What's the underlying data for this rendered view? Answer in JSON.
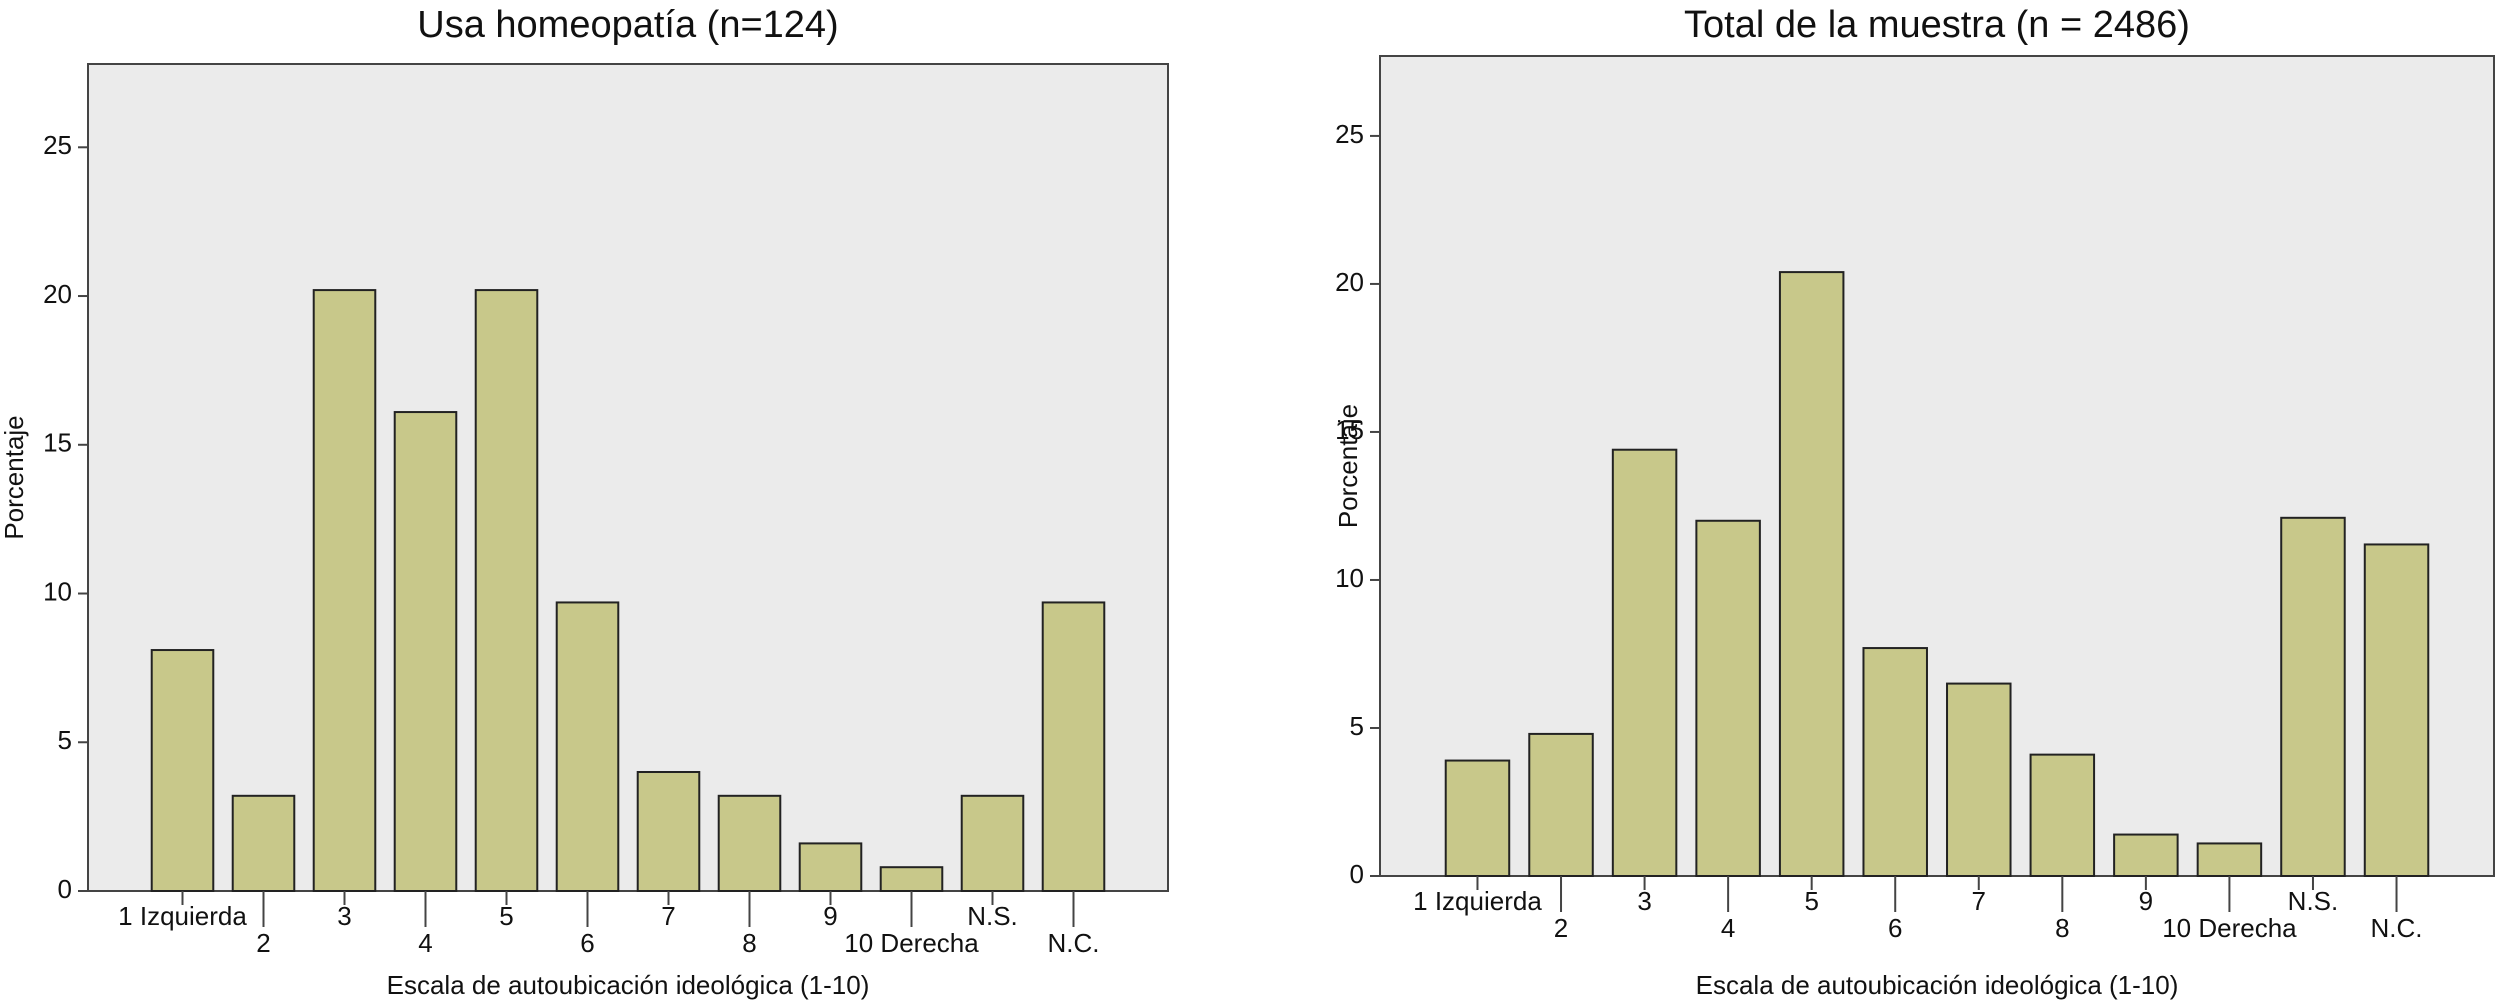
{
  "chart_data": [
    {
      "type": "bar",
      "title": "Usa homeopatía (n=124)",
      "x_label": "Escala de autoubicación ideológica (1-10)",
      "y_label": "Porcentaje",
      "categories": [
        "1 Izquierda",
        "2",
        "3",
        "4",
        "5",
        "6",
        "7",
        "8",
        "9",
        "10 Derecha",
        "N.S.",
        "N.C."
      ],
      "values": [
        8.1,
        3.2,
        20.2,
        16.1,
        20.2,
        9.7,
        4.0,
        3.2,
        1.6,
        0.8,
        3.2,
        9.7
      ],
      "color": "#c8c88a",
      "ylim": [
        0,
        27.8
      ],
      "yticks": [
        0,
        5,
        10,
        15,
        20,
        25
      ],
      "grid": false
    },
    {
      "type": "bar",
      "title": "Total de la muestra (n = 2486)",
      "x_label": "Escala de autoubicación ideológica (1-10)",
      "y_label": "Porcentaje",
      "categories": [
        "1 Izquierda",
        "2",
        "3",
        "4",
        "5",
        "6",
        "7",
        "8",
        "9",
        "10 Derecha",
        "N.S.",
        "N.C."
      ],
      "values": [
        3.9,
        4.8,
        14.4,
        12.0,
        20.4,
        7.7,
        6.5,
        4.1,
        1.4,
        1.1,
        12.1,
        11.2
      ],
      "color": "#c8c88a",
      "ylim": [
        0,
        27.7
      ],
      "yticks": [
        0,
        5,
        10,
        15,
        20,
        25
      ],
      "grid": false
    }
  ]
}
